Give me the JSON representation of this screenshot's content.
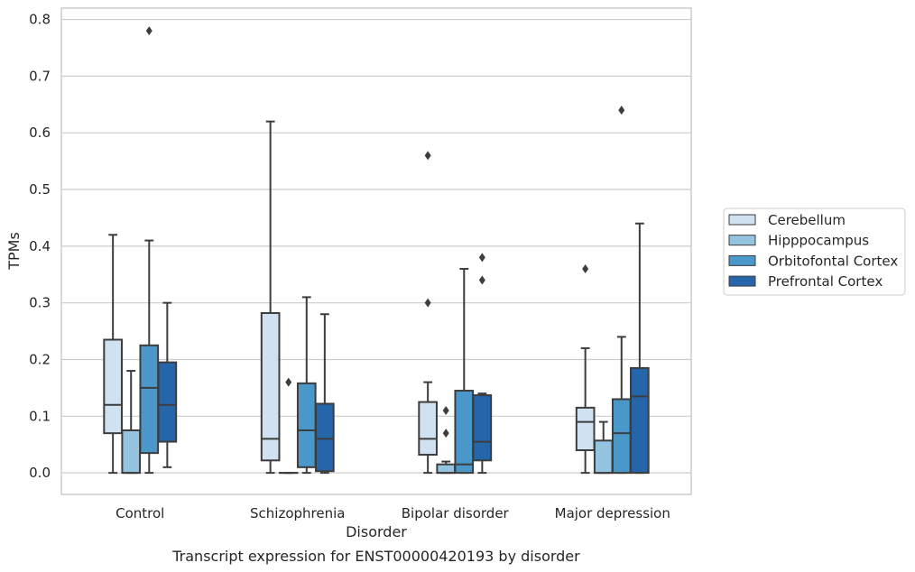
{
  "chart_data": {
    "type": "box",
    "title": "",
    "caption": "Transcript expression for ENST00000420193 by disorder",
    "xlabel": "Disorder",
    "ylabel": "TPMs",
    "ylim": [
      -0.038,
      0.82
    ],
    "yticks": [
      0.0,
      0.1,
      0.2,
      0.3,
      0.4,
      0.5,
      0.6,
      0.7,
      0.8
    ],
    "ytick_labels": [
      "0.0",
      "0.1",
      "0.2",
      "0.3",
      "0.4",
      "0.5",
      "0.6",
      "0.7",
      "0.8"
    ],
    "grid": "horizontal",
    "legend_position": "outside-right",
    "categories": [
      "Control",
      "Schizophrenia",
      "Bipolar disorder",
      "Major depression"
    ],
    "series": [
      {
        "name": "Cerebellum",
        "color": "#d0e1f2",
        "boxes": [
          {
            "whislo": 0.0,
            "q1": 0.07,
            "med": 0.12,
            "q3": 0.235,
            "whishi": 0.42,
            "fliers": []
          },
          {
            "whislo": 0.0,
            "q1": 0.022,
            "med": 0.06,
            "q3": 0.282,
            "whishi": 0.62,
            "fliers": []
          },
          {
            "whislo": 0.0,
            "q1": 0.032,
            "med": 0.06,
            "q3": 0.125,
            "whishi": 0.16,
            "fliers": [
              0.3,
              0.56
            ]
          },
          {
            "whislo": 0.0,
            "q1": 0.04,
            "med": 0.09,
            "q3": 0.115,
            "whishi": 0.22,
            "fliers": [
              0.36
            ]
          }
        ]
      },
      {
        "name": "Hipppocampus",
        "color": "#94c4df",
        "boxes": [
          {
            "whislo": 0.0,
            "q1": 0.0,
            "med": 0.0,
            "q3": 0.075,
            "whishi": 0.18,
            "fliers": []
          },
          {
            "whislo": 0.0,
            "q1": 0.0,
            "med": 0.0,
            "q3": 0.0,
            "whishi": 0.0,
            "fliers": [
              0.16
            ]
          },
          {
            "whislo": 0.0,
            "q1": 0.0,
            "med": 0.0,
            "q3": 0.015,
            "whishi": 0.02,
            "fliers": [
              0.07,
              0.11
            ]
          },
          {
            "whislo": 0.0,
            "q1": 0.0,
            "med": 0.0,
            "q3": 0.057,
            "whishi": 0.09,
            "fliers": []
          }
        ]
      },
      {
        "name": "Orbitofontal Cortex",
        "color": "#4a98c9",
        "boxes": [
          {
            "whislo": 0.0,
            "q1": 0.035,
            "med": 0.15,
            "q3": 0.225,
            "whishi": 0.41,
            "fliers": [
              0.78
            ]
          },
          {
            "whislo": 0.0,
            "q1": 0.01,
            "med": 0.075,
            "q3": 0.158,
            "whishi": 0.31,
            "fliers": []
          },
          {
            "whislo": 0.0,
            "q1": 0.0,
            "med": 0.015,
            "q3": 0.145,
            "whishi": 0.36,
            "fliers": []
          },
          {
            "whislo": 0.0,
            "q1": 0.0,
            "med": 0.07,
            "q3": 0.13,
            "whishi": 0.24,
            "fliers": [
              0.64
            ]
          }
        ]
      },
      {
        "name": "Prefrontal Cortex",
        "color": "#2565aa",
        "boxes": [
          {
            "whislo": 0.01,
            "q1": 0.055,
            "med": 0.12,
            "q3": 0.195,
            "whishi": 0.3,
            "fliers": []
          },
          {
            "whislo": 0.0,
            "q1": 0.003,
            "med": 0.06,
            "q3": 0.122,
            "whishi": 0.28,
            "fliers": []
          },
          {
            "whislo": 0.0,
            "q1": 0.022,
            "med": 0.055,
            "q3": 0.137,
            "whishi": 0.14,
            "fliers": [
              0.34,
              0.38
            ]
          },
          {
            "whislo": 0.0,
            "q1": 0.0,
            "med": 0.135,
            "q3": 0.185,
            "whishi": 0.44,
            "fliers": []
          }
        ]
      }
    ]
  }
}
